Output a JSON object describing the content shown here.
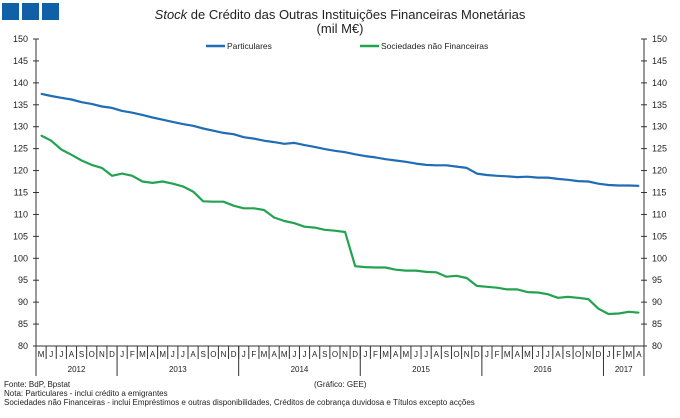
{
  "logo_colors": [
    "#1060a8",
    "#1060a8",
    "#1060a8"
  ],
  "title_italic": "Stock",
  "title_rest": " de Crédito das Outras Instituições Financeiras Monetárias",
  "subtitle": "(mil M€)",
  "notes": {
    "source": "Fonte: BdP, Bpstat",
    "graphic": "(Gráfico: GEE)",
    "note1": "Nota: Particulares - inclui crédito a emigrantes",
    "note2": "Sociedades não Financeiras - inclui Empréstimos e outras disponibilidades, Créditos de cobrança duvidosa e Títulos excepto acções"
  },
  "chart_data": {
    "type": "line",
    "ylim": [
      80,
      150
    ],
    "yticks": [
      80,
      85,
      90,
      95,
      100,
      105,
      110,
      115,
      120,
      125,
      130,
      135,
      140,
      145,
      150
    ],
    "grid": false,
    "legend_position": "top",
    "month_labels": [
      "M",
      "J",
      "J",
      "A",
      "S",
      "O",
      "N",
      "D",
      "J",
      "F",
      "M",
      "A",
      "M",
      "J",
      "J",
      "A",
      "S",
      "O",
      "N",
      "D",
      "J",
      "F",
      "M",
      "A",
      "M",
      "J",
      "J",
      "A",
      "S",
      "O",
      "N",
      "D",
      "J",
      "F",
      "M",
      "A",
      "M",
      "J",
      "J",
      "A",
      "S",
      "O",
      "N",
      "D",
      "J",
      "F",
      "M",
      "A",
      "M",
      "J",
      "J",
      "A",
      "S",
      "O",
      "N",
      "D",
      "J",
      "F",
      "M",
      "A"
    ],
    "years": [
      {
        "label": "2012",
        "months": 8
      },
      {
        "label": "2013",
        "months": 12
      },
      {
        "label": "2014",
        "months": 12
      },
      {
        "label": "2015",
        "months": 12
      },
      {
        "label": "2016",
        "months": 12
      },
      {
        "label": "2017",
        "months": 4
      }
    ],
    "series": [
      {
        "name": "Particulares",
        "color": "#1f6db5",
        "values": [
          137.5,
          137.0,
          136.6,
          136.2,
          135.6,
          135.2,
          134.6,
          134.3,
          133.6,
          133.2,
          132.7,
          132.1,
          131.6,
          131.1,
          130.6,
          130.2,
          129.6,
          129.1,
          128.6,
          128.3,
          127.6,
          127.3,
          126.8,
          126.5,
          126.1,
          126.3,
          125.8,
          125.4,
          124.9,
          124.5,
          124.2,
          123.7,
          123.3,
          123.0,
          122.6,
          122.3,
          122.0,
          121.6,
          121.3,
          121.2,
          121.2,
          120.9,
          120.6,
          119.3,
          119.0,
          118.8,
          118.7,
          118.5,
          118.6,
          118.4,
          118.4,
          118.1,
          117.9,
          117.6,
          117.5,
          117.0,
          116.7,
          116.6,
          116.6,
          116.5
        ]
      },
      {
        "name": "Sociedades não Financeiras",
        "color": "#22a350",
        "values": [
          128.0,
          126.8,
          124.8,
          123.6,
          122.3,
          121.3,
          120.6,
          118.8,
          119.3,
          118.8,
          117.5,
          117.2,
          117.5,
          117.0,
          116.4,
          115.2,
          113.0,
          112.9,
          112.9,
          112.0,
          111.4,
          111.4,
          111.0,
          109.3,
          108.5,
          108.0,
          107.2,
          107.0,
          106.5,
          106.3,
          106.0,
          98.2,
          98.0,
          97.9,
          97.9,
          97.4,
          97.2,
          97.2,
          96.9,
          96.8,
          95.8,
          96.0,
          95.5,
          93.7,
          93.5,
          93.3,
          92.9,
          92.9,
          92.3,
          92.2,
          91.8,
          91.0,
          91.2,
          91.0,
          90.7,
          88.5,
          87.3,
          87.4,
          87.8,
          87.6
        ]
      }
    ]
  }
}
